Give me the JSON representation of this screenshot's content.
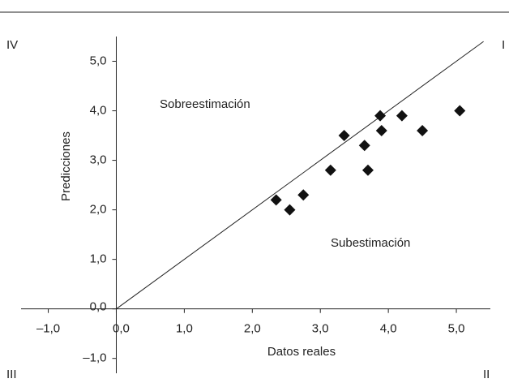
{
  "chart_data": {
    "type": "scatter",
    "x_label": "Datos reales",
    "y_label": "Predicciones",
    "annotations": [
      "Sobreestimación",
      "Subestimación"
    ],
    "quadrants": [
      "I",
      "II",
      "III",
      "IV"
    ],
    "x": [
      2.35,
      2.55,
      2.75,
      3.15,
      3.35,
      3.65,
      3.7,
      3.88,
      3.9,
      4.2,
      4.5,
      5.05
    ],
    "values": [
      2.2,
      2.0,
      2.3,
      2.8,
      3.5,
      3.3,
      2.8,
      3.9,
      3.6,
      3.9,
      3.6,
      4.0
    ],
    "color": "#111111",
    "identity_line": true,
    "xlim": [
      -1.4,
      5.5
    ],
    "ylim": [
      -1.3,
      5.5
    ],
    "xticks": [
      {
        "value": -1,
        "label": "–1,0"
      },
      {
        "value": 0,
        "label": "0,0"
      },
      {
        "value": 1,
        "label": "1,0"
      },
      {
        "value": 2,
        "label": "2,0"
      },
      {
        "value": 3,
        "label": "3,0"
      },
      {
        "value": 4,
        "label": "4,0"
      },
      {
        "value": 5,
        "label": "5,0"
      }
    ],
    "yticks": [
      {
        "value": -1,
        "label": "–1,0"
      },
      {
        "value": 0,
        "label": "0,0"
      },
      {
        "value": 1,
        "label": "1,0"
      },
      {
        "value": 2,
        "label": "2,0"
      },
      {
        "value": 3,
        "label": "3,0"
      },
      {
        "value": 4,
        "label": "4,0"
      },
      {
        "value": 5,
        "label": "5,0"
      }
    ]
  }
}
